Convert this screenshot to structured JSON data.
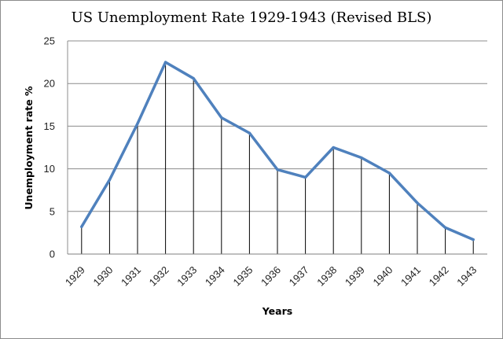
{
  "chart_data": {
    "type": "line",
    "title": "US Unemployment Rate 1929-1943 (Revised BLS)",
    "xlabel": "Years",
    "ylabel": "Unemployment rate %",
    "categories": [
      "1929",
      "1930",
      "1931",
      "1932",
      "1933",
      "1934",
      "1935",
      "1936",
      "1937",
      "1938",
      "1939",
      "1940",
      "1941",
      "1942",
      "1943"
    ],
    "series": [
      {
        "values": [
          3.2,
          8.7,
          15.3,
          22.5,
          20.6,
          16.0,
          14.2,
          9.9,
          9.0,
          12.5,
          11.3,
          9.5,
          6.0,
          3.1,
          1.7
        ]
      }
    ],
    "yticks": [
      "0",
      "5",
      "10",
      "15",
      "20",
      "25"
    ],
    "ylim": [
      0,
      25
    ],
    "grid": "horizontal",
    "drop_lines": true,
    "line_color": "#4f81bd",
    "grid_color": "#8c8c8c"
  }
}
